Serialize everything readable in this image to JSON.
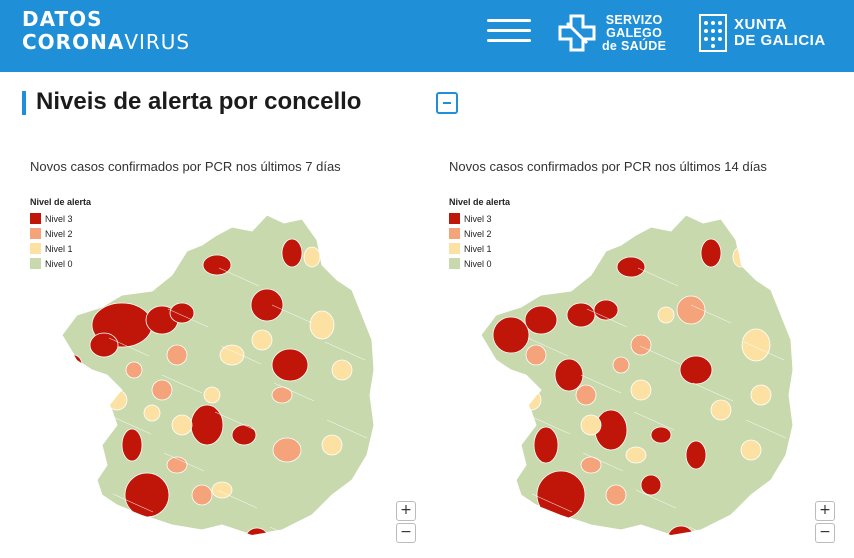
{
  "header": {
    "brand_line1": "DATOS",
    "brand_line2_bold": "CORONA",
    "brand_line2_light": "VIRUS",
    "sgs_line1": "SERVIZO",
    "sgs_line2": "GALEGO",
    "sgs_line3": "de SAÚDE",
    "xunta_line1": "XUNTA",
    "xunta_line2": "DE GALICIA",
    "menu_icon": "hamburger-menu-icon"
  },
  "page": {
    "title": "Niveis de alerta por concello"
  },
  "colors": {
    "header": "#1f8fd8",
    "nivel3": "#c0160a",
    "nivel2": "#f4a37a",
    "nivel1": "#fde1a2",
    "nivel0": "#c7d9ad"
  },
  "maps": [
    {
      "title": "Novos casos confirmados por PCR nos últimos 7 días",
      "legend_title": "Nivel de alerta",
      "legend": [
        "Nivel 3",
        "Nivel 2",
        "Nivel 1",
        "Nivel 0"
      ],
      "zoom_in": "+",
      "zoom_out": "−"
    },
    {
      "title": "Novos casos confirmados por PCR nos últimos 14 días",
      "legend_title": "Nivel de alerta",
      "legend": [
        "Nivel 3",
        "Nivel 2",
        "Nivel 1",
        "Nivel 0"
      ],
      "zoom_in": "+",
      "zoom_out": "−"
    }
  ]
}
